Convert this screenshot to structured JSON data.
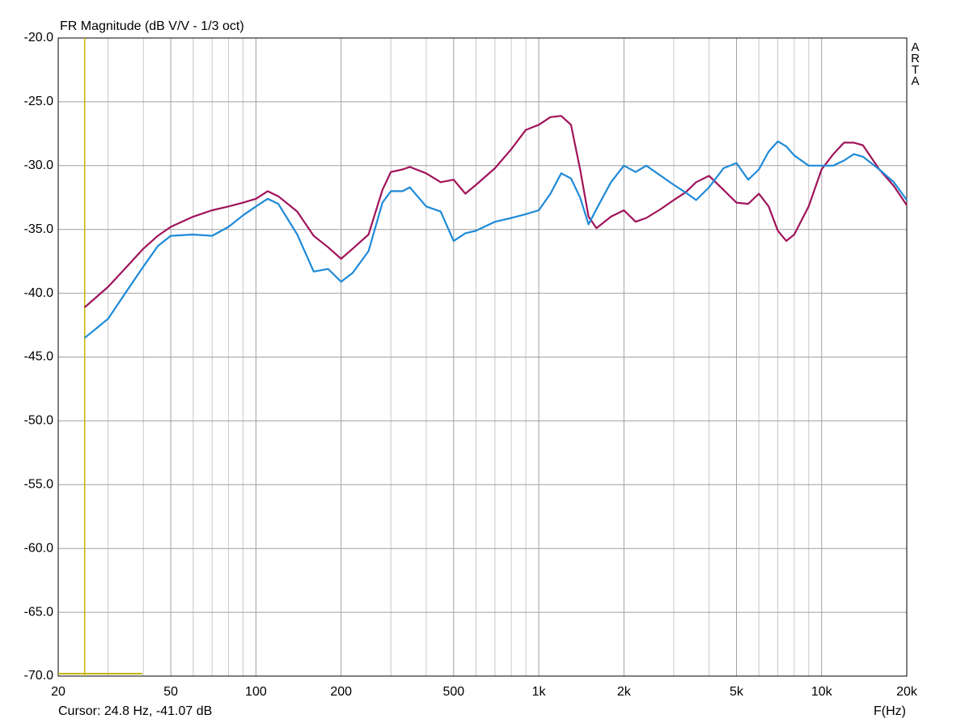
{
  "chart_data": {
    "type": "line",
    "title": "FR Magnitude (dB V/V - 1/3 oct)",
    "x_label": "F(Hz)",
    "brand": "ARTA",
    "cursor": {
      "label": "Cursor: 24.8 Hz, -41.07 dB",
      "x": 24.8,
      "color": "#c8b400"
    },
    "x_scale": "log",
    "grid": true,
    "grid_color": "#a0a0a0",
    "xlim": [
      20,
      20000
    ],
    "ylim": [
      -70,
      -20
    ],
    "xticks": [
      20,
      50,
      100,
      200,
      500,
      {
        "value": 1000,
        "label": "1k"
      },
      {
        "value": 2000,
        "label": "2k"
      },
      {
        "value": 5000,
        "label": "5k"
      },
      {
        "value": 10000,
        "label": "10k"
      },
      {
        "value": 20000,
        "label": "20k"
      }
    ],
    "x_minor_grid": [
      30,
      40,
      60,
      70,
      80,
      90,
      300,
      400,
      600,
      700,
      800,
      900,
      3000,
      4000,
      6000,
      7000,
      8000,
      9000
    ],
    "yticks": [
      {
        "value": -20,
        "label": "-20.0"
      },
      {
        "value": -25,
        "label": "-25.0"
      },
      {
        "value": -30,
        "label": "-30.0"
      },
      {
        "value": -35,
        "label": "-35.0"
      },
      {
        "value": -40,
        "label": "-40.0"
      },
      {
        "value": -45,
        "label": "-45.0"
      },
      {
        "value": -50,
        "label": "-50.0"
      },
      {
        "value": -55,
        "label": "-55.0"
      },
      {
        "value": -60,
        "label": "-60.0"
      },
      {
        "value": -65,
        "label": "-65.0"
      },
      {
        "value": -70,
        "label": "-70.0"
      }
    ],
    "x": [
      24.8,
      30,
      35,
      40,
      45,
      50,
      60,
      70,
      80,
      90,
      100,
      110,
      120,
      140,
      160,
      180,
      200,
      220,
      250,
      280,
      300,
      330,
      350,
      400,
      450,
      500,
      550,
      600,
      700,
      800,
      900,
      1000,
      1100,
      1200,
      1300,
      1400,
      1500,
      1600,
      1800,
      2000,
      2200,
      2400,
      2700,
      3000,
      3300,
      3600,
      4000,
      4500,
      5000,
      5500,
      6000,
      6500,
      7000,
      7500,
      8000,
      9000,
      10000,
      11000,
      12000,
      13000,
      14000,
      16000,
      18000,
      20000
    ],
    "series": [
      {
        "color": "#a0145a",
        "values": [
          -41.1,
          -39.5,
          -37.9,
          -36.5,
          -35.5,
          -34.8,
          -34.0,
          -33.5,
          -33.2,
          -32.9,
          -32.6,
          -32.0,
          -32.4,
          -33.6,
          -35.5,
          -36.4,
          -37.3,
          -36.5,
          -35.4,
          -31.9,
          -30.5,
          -30.3,
          -30.1,
          -30.6,
          -31.3,
          -31.1,
          -32.2,
          -31.5,
          -30.2,
          -28.7,
          -27.2,
          -26.8,
          -26.2,
          -26.1,
          -26.8,
          -30.3,
          -34.0,
          -34.9,
          -34.0,
          -33.5,
          -34.4,
          -34.1,
          -33.4,
          -32.7,
          -32.1,
          -31.3,
          -30.8,
          -31.9,
          -32.9,
          -33.0,
          -32.2,
          -33.2,
          -35.1,
          -35.9,
          -35.4,
          -33.2,
          -30.3,
          -29.1,
          -28.2,
          -28.2,
          -28.4,
          -30.3,
          -31.6,
          -33.1
        ]
      },
      {
        "color": "#1e8ad8",
        "values": [
          -43.5,
          -42.0,
          -39.8,
          -37.9,
          -36.3,
          -35.5,
          -35.4,
          -35.5,
          -34.8,
          -33.9,
          -33.2,
          -32.6,
          -33.0,
          -35.4,
          -38.3,
          -38.1,
          -39.1,
          -38.4,
          -36.7,
          -32.9,
          -32.0,
          -32.0,
          -31.7,
          -33.2,
          -33.6,
          -35.9,
          -35.3,
          -35.1,
          -34.4,
          -34.1,
          -33.8,
          -33.5,
          -32.2,
          -30.6,
          -31.0,
          -32.5,
          -34.6,
          -33.4,
          -31.3,
          -30.0,
          -30.5,
          -30.0,
          -30.8,
          -31.5,
          -32.1,
          -32.7,
          -31.7,
          -30.2,
          -29.8,
          -31.1,
          -30.3,
          -28.9,
          -28.1,
          -28.5,
          -29.2,
          -30.0,
          -30.0,
          -30.0,
          -29.6,
          -29.1,
          -29.3,
          -30.3,
          -31.3,
          -32.7
        ]
      }
    ]
  }
}
